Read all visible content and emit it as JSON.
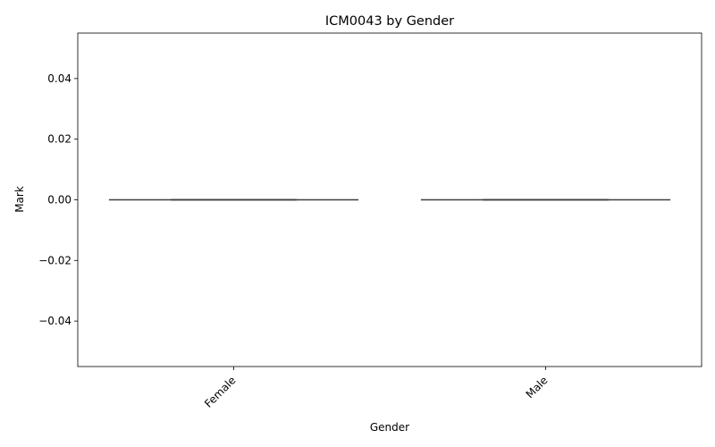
{
  "chart_data": {
    "type": "box",
    "title": "ICM0043 by Gender",
    "xlabel": "Gender",
    "ylabel": "Mark",
    "categories": [
      "Female",
      "Male"
    ],
    "boxes": [
      {
        "category": "Female",
        "min": 0,
        "q1": 0,
        "median": 0,
        "q3": 0,
        "max": 0
      },
      {
        "category": "Male",
        "min": 0,
        "q1": 0,
        "median": 0,
        "q3": 0,
        "max": 0
      }
    ],
    "ylim": [
      -0.055,
      0.055
    ],
    "yticks": [
      -0.04,
      -0.02,
      0.0,
      0.02,
      0.04
    ],
    "ytick_labels": [
      "−0.04",
      "−0.02",
      "0.00",
      "0.02",
      "0.04"
    ],
    "xtick_rotation_deg": 45,
    "grid": false,
    "colors": {
      "box_line": "#3f3f3f",
      "axis": "#000000"
    }
  }
}
